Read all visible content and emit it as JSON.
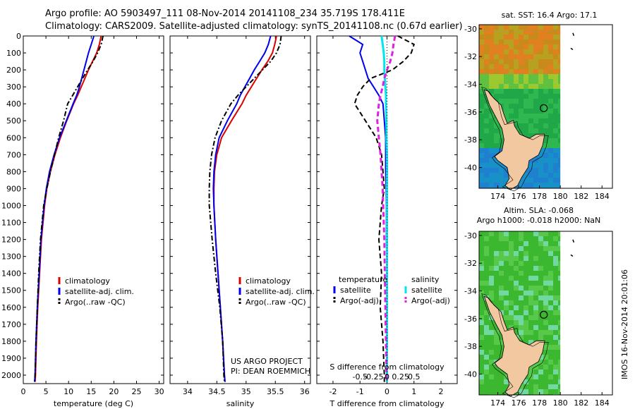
{
  "header": {
    "line1": "Argo profile: AO 5903497_111 08-Nov-2014 20141108_234 35.719S 178.411E",
    "line2": "Climatology: CARS2009. Satellite-adjusted climatology: synTS_20141108.nc (0.67d earlier)"
  },
  "side_stamp": "IMOS 16-Nov-2014 20:01:06",
  "colors": {
    "climatology": "#dd0000",
    "satellite": "#0000ee",
    "argo": "#000000",
    "salinity_sat": "#00e5ee",
    "salinity_argo": "#e020e0",
    "land": "#f2c8a0"
  },
  "chart_data": [
    {
      "type": "line",
      "panel": "temperature",
      "xlabel": "temperature (deg C)",
      "ylabel": "",
      "xlim": [
        0,
        31
      ],
      "ylim": [
        2050,
        0
      ],
      "xticks": [
        0,
        5,
        10,
        15,
        20,
        25,
        30
      ],
      "yticks": [
        0,
        100,
        200,
        300,
        400,
        500,
        600,
        700,
        800,
        900,
        1000,
        1100,
        1200,
        1300,
        1400,
        1500,
        1600,
        1700,
        1800,
        1900,
        2000
      ],
      "legend": [
        "climatology",
        "satellite-adj. clim.",
        "Argo(..raw -QC)"
      ],
      "depth": [
        0,
        50,
        100,
        150,
        200,
        250,
        300,
        350,
        400,
        500,
        600,
        700,
        800,
        900,
        1000,
        1200,
        1400,
        1600,
        1800,
        2000,
        2040
      ],
      "series": [
        {
          "name": "climatology",
          "values": [
            17.2,
            16.8,
            16.2,
            15.3,
            14.4,
            13.6,
            12.8,
            12.0,
            11.1,
            9.6,
            8.2,
            7.0,
            6.0,
            5.2,
            4.7,
            4.0,
            3.6,
            3.2,
            2.9,
            2.7,
            2.6
          ]
        },
        {
          "name": "satellite-adj. clim.",
          "values": [
            15.6,
            15.0,
            14.4,
            13.9,
            13.4,
            12.9,
            12.4,
            11.8,
            11.0,
            9.5,
            8.0,
            6.8,
            5.8,
            5.1,
            4.6,
            3.9,
            3.5,
            3.1,
            2.8,
            2.6,
            2.5
          ]
        },
        {
          "name": "Argo(..raw -QC)",
          "values": [
            17.6,
            17.2,
            16.4,
            15.4,
            14.2,
            13.1,
            12.0,
            10.9,
            9.8,
            8.9,
            7.8,
            6.9,
            6.0,
            5.2,
            4.5,
            3.8,
            3.4,
            3.1,
            2.8,
            2.6,
            2.5
          ]
        }
      ]
    },
    {
      "type": "line",
      "panel": "salinity",
      "xlabel": "salinity",
      "ylabel": "",
      "xlim": [
        33.7,
        36.1
      ],
      "ylim": [
        2050,
        0
      ],
      "xticks": [
        34,
        34.5,
        35,
        35.5,
        36
      ],
      "legend": [
        "climatology",
        "satellite-adj. clim.",
        "Argo(..raw -QC)"
      ],
      "annotation": [
        "US ARGO PROJECT",
        "PI: DEAN ROEMMICH"
      ],
      "depth": [
        0,
        50,
        100,
        150,
        200,
        250,
        300,
        350,
        400,
        500,
        600,
        700,
        800,
        900,
        1000,
        1200,
        1400,
        1600,
        1800,
        2000,
        2040
      ],
      "series": [
        {
          "name": "climatology",
          "values": [
            35.52,
            35.49,
            35.45,
            35.37,
            35.27,
            35.18,
            35.09,
            35.0,
            34.93,
            34.75,
            34.58,
            34.5,
            34.46,
            34.45,
            34.45,
            34.48,
            34.52,
            34.56,
            34.6,
            34.63,
            34.64
          ]
        },
        {
          "name": "satellite-adj. clim.",
          "values": [
            35.42,
            35.38,
            35.32,
            35.23,
            35.14,
            35.06,
            34.98,
            34.9,
            34.84,
            34.68,
            34.54,
            34.48,
            34.45,
            34.44,
            34.45,
            34.48,
            34.52,
            34.56,
            34.6,
            34.63,
            34.64
          ]
        },
        {
          "name": "Argo(..raw -QC)",
          "values": [
            35.6,
            35.58,
            35.52,
            35.42,
            35.28,
            35.14,
            35.0,
            34.86,
            34.74,
            34.58,
            34.47,
            34.41,
            34.38,
            34.37,
            34.37,
            34.42,
            34.48,
            34.55,
            34.6,
            34.62,
            34.63
          ]
        }
      ]
    },
    {
      "type": "line",
      "panel": "difference",
      "xlabel": "T difference from climatology",
      "xlabel_top": "S difference from climatology",
      "xlim": [
        -2.6,
        2.6
      ],
      "ylim": [
        2050,
        0
      ],
      "xticks": [
        -2,
        -1,
        0,
        1,
        2
      ],
      "xtick_labels": [
        "-2",
        "-1",
        "0",
        "1",
        "2"
      ],
      "s_ticks": [
        -0.5,
        -0.25,
        0,
        0.25,
        0.5
      ],
      "s_tick_labels": [
        "-0.5",
        "-0.25",
        "0",
        "0.25",
        "0.5"
      ],
      "legend": {
        "temperature_title": "temperature",
        "salinity_title": "salinity",
        "entries": [
          "satellite",
          "Argo(-adj)",
          "satellite",
          "Argo(-adj)"
        ]
      },
      "depth": [
        0,
        50,
        100,
        150,
        200,
        250,
        300,
        350,
        400,
        500,
        600,
        700,
        800,
        900,
        1000,
        1200,
        1400,
        1600,
        1800,
        2000,
        2040
      ],
      "series": [
        {
          "name": "temperature satellite",
          "values": [
            -1.4,
            -0.9,
            -1.0,
            -0.9,
            -0.8,
            -0.7,
            -0.5,
            -0.3,
            -0.15,
            -0.1,
            -0.05,
            -0.05,
            -0.05,
            -0.03,
            -0.02,
            -0.02,
            0,
            0,
            0,
            0,
            0
          ]
        },
        {
          "name": "temperature Argo(-adj)",
          "values": [
            0.4,
            1.0,
            0.9,
            0.6,
            0.2,
            -0.6,
            -0.9,
            -1.1,
            -1.2,
            -0.8,
            -0.4,
            -0.2,
            -0.15,
            -0.1,
            -0.2,
            -0.3,
            -0.2,
            -0.25,
            -0.15,
            -0.1,
            -0.1
          ]
        },
        {
          "name": "salinity satellite",
          "values": [
            -0.1,
            -0.08,
            -0.06,
            -0.05,
            -0.05,
            -0.04,
            -0.03,
            -0.02,
            -0.02,
            -0.01,
            -0.01,
            0,
            0,
            0,
            0,
            0,
            0,
            0,
            0,
            0,
            0
          ]
        },
        {
          "name": "salinity Argo(-adj)",
          "values": [
            0.15,
            0.12,
            0.1,
            0.06,
            0.0,
            -0.05,
            -0.08,
            -0.12,
            -0.15,
            -0.18,
            -0.15,
            -0.12,
            -0.1,
            -0.08,
            -0.07,
            -0.05,
            -0.04,
            -0.03,
            -0.02,
            -0.01,
            0
          ]
        }
      ]
    },
    {
      "type": "heatmap",
      "panel": "sst-map",
      "title": "sat. SST: 16.4  Argo: 17.1",
      "xlim": [
        172.2,
        185
      ],
      "ylim": [
        -41.5,
        -29.7
      ],
      "xticks": [
        174,
        176,
        178,
        180,
        182,
        184
      ],
      "yticks": [
        -30,
        -32,
        -34,
        -36,
        -38,
        -40
      ],
      "marker": {
        "lon": 178.411,
        "lat": -35.719
      },
      "data_region_lon_max": 180
    },
    {
      "type": "heatmap",
      "panel": "sla-map",
      "title": "Altim. SLA: -0.068",
      "subtitle": "Argo h1000: -0.018 h2000: NaN",
      "xlim": [
        172.2,
        185
      ],
      "ylim": [
        -41.5,
        -29.7
      ],
      "xticks": [
        174,
        176,
        178,
        180,
        182,
        184
      ],
      "yticks": [
        -30,
        -32,
        -34,
        -36,
        -38,
        -40
      ],
      "marker": {
        "lon": 178.411,
        "lat": -35.719
      },
      "data_region_lon_max": 180
    }
  ]
}
